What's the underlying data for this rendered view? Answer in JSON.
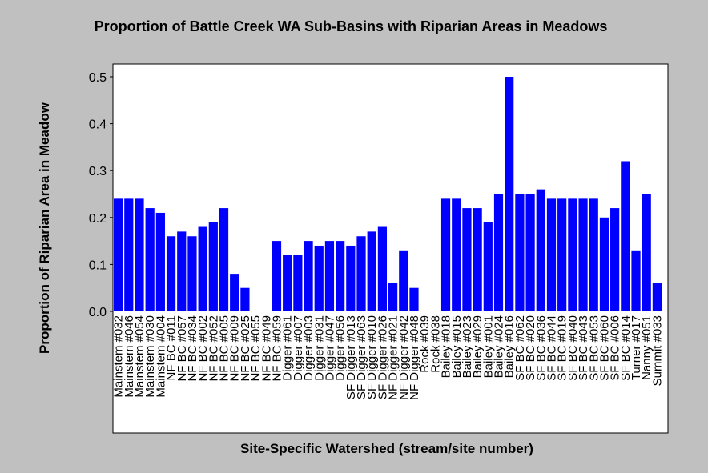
{
  "chart_data": {
    "type": "bar",
    "title": "Proportion of Battle Creek WA Sub-Basins with Riparian Areas in Meadows",
    "xlabel": "Site-Specific Watershed (stream/site number)",
    "ylabel": "Proportion of Riparian Area in Meadow",
    "ylim": [
      0,
      0.51
    ],
    "yticks": [
      "0.0",
      "0.1",
      "0.2",
      "0.3",
      "0.4",
      "0.5"
    ],
    "grid": false,
    "colors": {
      "bar": "#0000ff",
      "plot_bg": "#ffffff",
      "page_bg": "#c0c0c0"
    },
    "categories": [
      "Mainstem #032",
      "Mainstem #046",
      "Mainstem #054",
      "Mainstem #030",
      "Mainstem #004",
      "NF BC #011",
      "NF BC #057",
      "NF BC #034",
      "NF BC #002",
      "NF BC #052",
      "NF BC #005",
      "NF BC #009",
      "NF BC #025",
      "NF BC #055",
      "NF BC #049",
      "NF BC #059",
      "Digger #061",
      "Digger #007",
      "Digger #003",
      "Digger #031",
      "Digger #047",
      "Digger #056",
      "SF Digger #013",
      "SF Digger #063",
      "SF Digger #010",
      "SF Digger #026",
      "NF Digger #021",
      "NF Digger #042",
      "NF Digger #048",
      "Rock #039",
      "Rock #038",
      "Bailey #018",
      "Bailey #015",
      "Bailey #023",
      "Bailey #029",
      "Bailey #001",
      "Bailey #024",
      "Bailey #016",
      "SF BC #062",
      "SF BC #020",
      "SF BC #036",
      "SF BC #044",
      "SF BC #019",
      "SF BC #040",
      "SF BC #043",
      "SF BC #053",
      "SF BC #060",
      "SF BC #006",
      "SF BC #014",
      "Turner #017",
      "Nanny #051",
      "Summit #033"
    ],
    "values": [
      0.24,
      0.24,
      0.24,
      0.22,
      0.21,
      0.16,
      0.17,
      0.16,
      0.18,
      0.19,
      0.22,
      0.08,
      0.05,
      0.0,
      0.0,
      0.15,
      0.12,
      0.12,
      0.15,
      0.14,
      0.15,
      0.15,
      0.14,
      0.16,
      0.17,
      0.18,
      0.06,
      0.13,
      0.05,
      0.0,
      0.0,
      0.24,
      0.24,
      0.22,
      0.22,
      0.19,
      0.25,
      0.5,
      0.25,
      0.25,
      0.26,
      0.24,
      0.24,
      0.24,
      0.24,
      0.24,
      0.2,
      0.22,
      0.32,
      0.13,
      0.25,
      0.06
    ]
  }
}
